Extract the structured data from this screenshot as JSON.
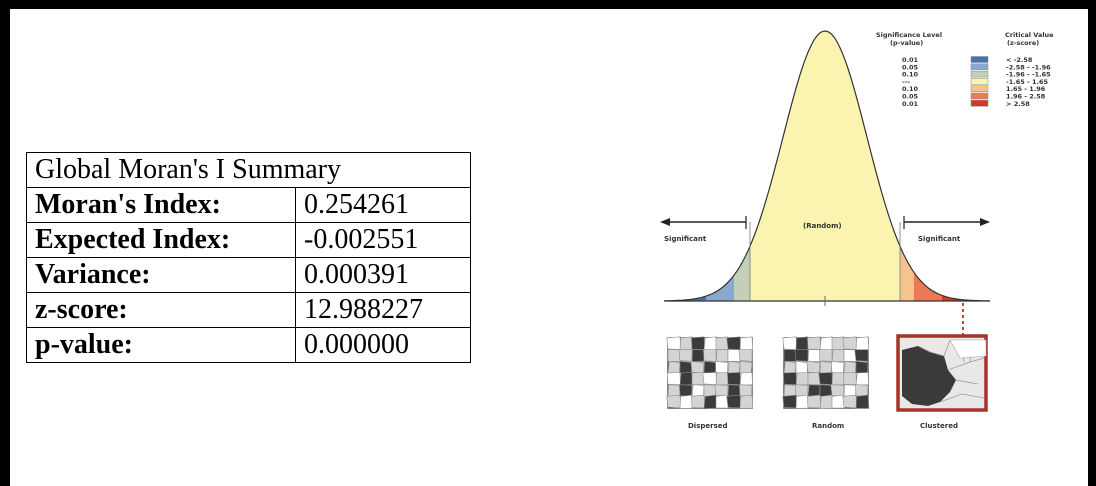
{
  "summary": {
    "title": "Global Moran's I Summary",
    "rows": [
      {
        "label": "Moran's Index:",
        "value": "0.254261"
      },
      {
        "label": "Expected Index:",
        "value": "-0.002551"
      },
      {
        "label": "Variance:",
        "value": "0.000391"
      },
      {
        "label": "z-score:",
        "value": "12.988227"
      },
      {
        "label": "p-value:",
        "value": "0.000000"
      }
    ]
  },
  "diagram": {
    "significant_left": "Significant",
    "significant_right": "Significant",
    "random_center": "(Random)",
    "legend": {
      "col1_header_line1": "Significance Level",
      "col1_header_line2": "(p-value)",
      "col2_header_line1": "Critical Value",
      "col2_header_line2": "(z-score)",
      "rows": [
        {
          "p": "0.01",
          "z": "< -2.58",
          "color": "#4a72b0"
        },
        {
          "p": "0.05",
          "z": "-2.58 - -1.96",
          "color": "#8aa9cf"
        },
        {
          "p": "0.10",
          "z": "-1.96 - -1.65",
          "color": "#c4cfb8"
        },
        {
          "p": "---",
          "z": "-1.65 - 1.65",
          "color": "#fbf4b0"
        },
        {
          "p": "0.10",
          "z": "1.65 - 1.96",
          "color": "#f6c28e"
        },
        {
          "p": "0.05",
          "z": "1.96 - 2.58",
          "color": "#ee7a55"
        },
        {
          "p": "0.01",
          "z": "> 2.58",
          "color": "#d6372a"
        }
      ]
    },
    "patterns": {
      "dispersed": "Dispersed",
      "random": "Random",
      "clustered": "Clustered"
    }
  }
}
